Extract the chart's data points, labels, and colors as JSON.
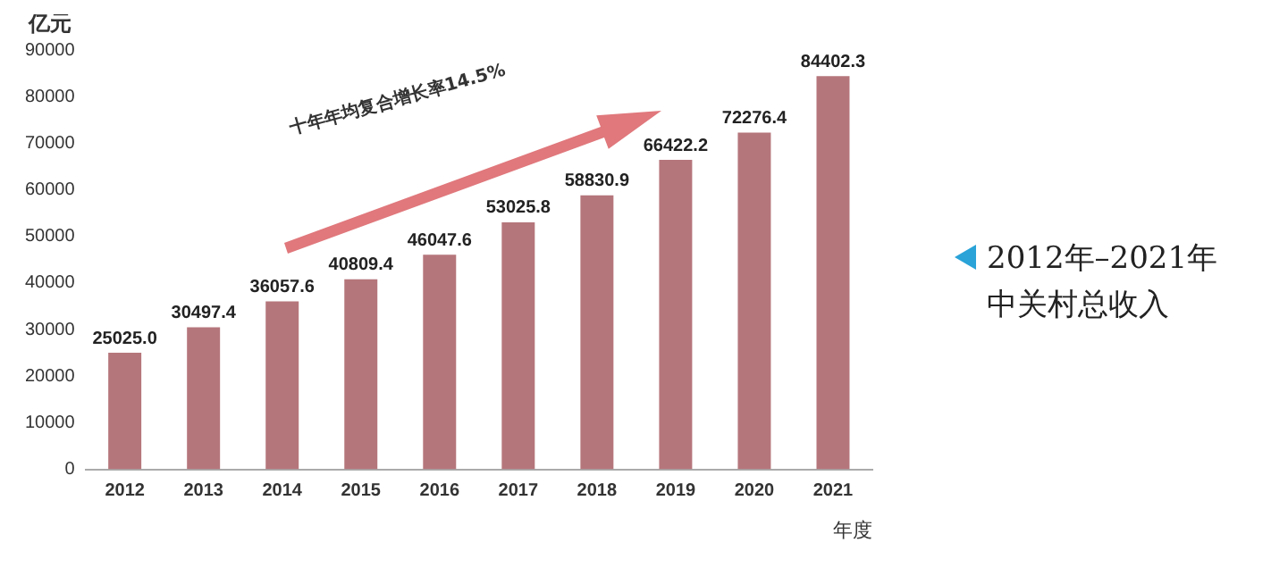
{
  "chart_data": {
    "type": "bar",
    "ylabel": "亿元",
    "xlabel": "年度",
    "categories": [
      "2012",
      "2013",
      "2014",
      "2015",
      "2016",
      "2017",
      "2018",
      "2019",
      "2020",
      "2021"
    ],
    "values": [
      25025.0,
      30497.4,
      36057.6,
      40809.4,
      46047.6,
      53025.8,
      58830.9,
      66422.2,
      72276.4,
      84402.3
    ],
    "value_labels": [
      "25025.0",
      "30497.4",
      "36057.6",
      "40809.4",
      "46047.6",
      "53025.8",
      "58830.9",
      "66422.2",
      "72276.4",
      "84402.3"
    ],
    "color": "#b5767b",
    "ylim": [
      0,
      90000
    ],
    "yticks": [
      0,
      10000,
      20000,
      30000,
      40000,
      50000,
      60000,
      70000,
      80000,
      90000
    ],
    "grid": false,
    "legend": false,
    "annotations": [
      "十年年均复合增长率14.5%",
      "2012年–2021年中关村总收入"
    ]
  }
}
